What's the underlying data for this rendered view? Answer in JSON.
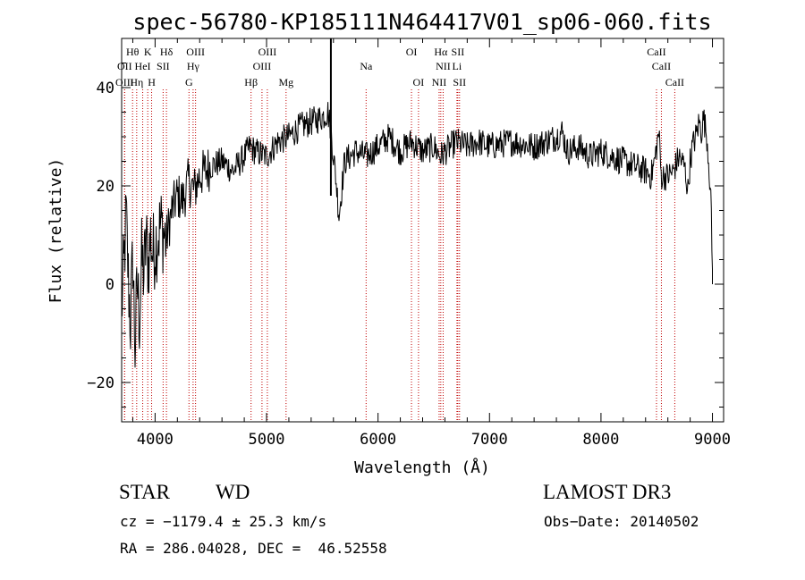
{
  "chart_data": {
    "type": "line",
    "title": "spec-56780-KP185111N464417V01_sp06-060.fits",
    "xlabel": "Wavelength (Å)",
    "ylabel": "Flux (relative)",
    "xlim": [
      3700,
      9100
    ],
    "ylim": [
      -28,
      50
    ],
    "x_ticks": [
      4000,
      5000,
      6000,
      7000,
      8000,
      9000
    ],
    "y_ticks": [
      -20,
      0,
      20,
      40
    ],
    "x_tick_labels": [
      "4000",
      "5000",
      "6000",
      "7000",
      "8000",
      "9000"
    ],
    "y_tick_labels": [
      "−20",
      "0",
      "20",
      "40"
    ],
    "series": [
      {
        "name": "flux",
        "x": [
          3700,
          3720,
          3740,
          3760,
          3780,
          3800,
          3820,
          3840,
          3860,
          3880,
          3900,
          3920,
          3940,
          3960,
          3980,
          4000,
          4050,
          4100,
          4150,
          4200,
          4250,
          4300,
          4350,
          4400,
          4450,
          4500,
          4600,
          4700,
          4800,
          4850,
          4900,
          5000,
          5100,
          5200,
          5300,
          5400,
          5500,
          5550,
          5580,
          5600,
          5620,
          5650,
          5700,
          5800,
          5900,
          6000,
          6100,
          6200,
          6300,
          6400,
          6500,
          6560,
          6600,
          6700,
          6800,
          6900,
          7000,
          7200,
          7400,
          7600,
          7650,
          7700,
          7800,
          7900,
          8000,
          8100,
          8200,
          8300,
          8400,
          8450,
          8480,
          8500,
          8520,
          8540,
          8600,
          8650,
          8700,
          8750,
          8780,
          8800,
          8820,
          8850,
          8880,
          8900,
          8920,
          8950,
          8970,
          8990,
          9000
        ],
        "y": [
          -5,
          3,
          14,
          1,
          -8,
          6,
          -13,
          0,
          -7,
          5,
          2,
          9,
          4,
          10,
          6,
          8,
          12,
          9,
          15,
          18,
          17,
          21,
          19,
          22,
          23,
          24,
          25,
          23,
          26,
          28,
          27,
          26,
          29,
          30,
          32,
          33,
          34,
          35,
          31,
          26,
          22,
          14,
          25,
          27,
          26,
          28,
          30,
          27,
          29,
          27,
          28,
          26,
          27,
          29,
          28,
          29,
          28,
          29,
          28,
          30,
          31,
          27,
          28,
          26,
          27,
          26,
          25,
          24,
          23,
          22,
          25,
          28,
          31,
          22,
          22,
          23,
          26,
          24,
          19,
          25,
          28,
          30,
          33,
          31,
          34,
          30,
          24,
          14,
          2
        ]
      }
    ],
    "spectral_lines": [
      {
        "label": "Hθ",
        "wavelength": 3798,
        "row": 1
      },
      {
        "label": "OII",
        "wavelength": 3727,
        "row": 2
      },
      {
        "label": "OIII",
        "wavelength": 3727,
        "row": 3
      },
      {
        "label": "K",
        "wavelength": 3934,
        "row": 1
      },
      {
        "label": "HeI",
        "wavelength": 3889,
        "row": 2
      },
      {
        "label": "Hη",
        "wavelength": 3835,
        "row": 3
      },
      {
        "label": "Hδ",
        "wavelength": 4102,
        "row": 1
      },
      {
        "label": "SII",
        "wavelength": 4072,
        "row": 2
      },
      {
        "label": "H",
        "wavelength": 3969,
        "row": 3
      },
      {
        "label": "OIII",
        "wavelength": 4363,
        "row": 1
      },
      {
        "label": "Hγ",
        "wavelength": 4341,
        "row": 2
      },
      {
        "label": "G",
        "wavelength": 4304,
        "row": 3
      },
      {
        "label": "OIII",
        "wavelength": 5007,
        "row": 1
      },
      {
        "label": "OIII",
        "wavelength": 4959,
        "row": 2
      },
      {
        "label": "Hβ",
        "wavelength": 4861,
        "row": 3
      },
      {
        "label": "Mg",
        "wavelength": 5175,
        "row": 3
      },
      {
        "label": "Na",
        "wavelength": 5893,
        "row": 2
      },
      {
        "label": "OI",
        "wavelength": 6300,
        "row": 1
      },
      {
        "label": "OI",
        "wavelength": 6363,
        "row": 3
      },
      {
        "label": "Hα",
        "wavelength": 6563,
        "row": 1
      },
      {
        "label": "SII",
        "wavelength": 6716,
        "row": 1
      },
      {
        "label": "NII",
        "wavelength": 6584,
        "row": 2
      },
      {
        "label": "Li",
        "wavelength": 6708,
        "row": 2
      },
      {
        "label": "NII",
        "wavelength": 6548,
        "row": 3
      },
      {
        "label": "SII",
        "wavelength": 6731,
        "row": 3
      },
      {
        "label": "CaII",
        "wavelength": 8498,
        "row": 1
      },
      {
        "label": "CaII",
        "wavelength": 8542,
        "row": 2
      },
      {
        "label": "CaII",
        "wavelength": 8662,
        "row": 3
      }
    ],
    "sky_line": 5577,
    "colors": {
      "line": "#000000",
      "spectral_line": "#c00000",
      "axes": "#000000"
    }
  },
  "info": {
    "class": "STAR",
    "subclass": "WD",
    "survey": "LAMOST DR3",
    "cz": "cz = −1179.4 ± 25.3 km/s",
    "obs_date": "Obs−Date: 20140502",
    "coords": "RA = 286.04028, DEC =  46.52558"
  }
}
